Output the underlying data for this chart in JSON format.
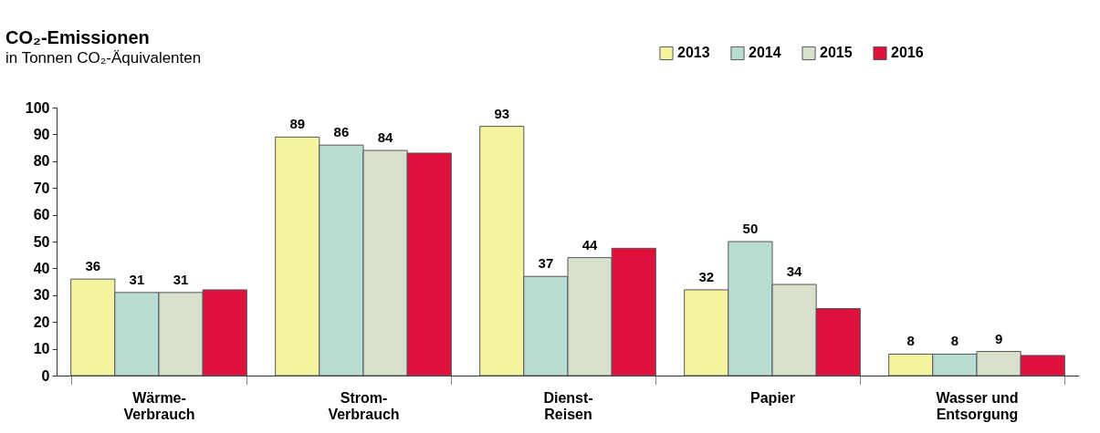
{
  "chart_data": {
    "type": "bar",
    "title": "CO₂-Emissionen",
    "subtitle": "in Tonnen CO₂-Äquivalenten",
    "categories": [
      "Wärme-Verbrauch",
      "Strom-Verbrauch",
      "Dienst-Reisen",
      "Papier",
      "Wasser und Entsorgung"
    ],
    "series": [
      {
        "name": "2013",
        "color": "#f5f3a0",
        "values": [
          36,
          89,
          93,
          32,
          8
        ],
        "value_labels": [
          "36",
          "89",
          "93",
          "32",
          "8"
        ]
      },
      {
        "name": "2014",
        "color": "#b9ddd3",
        "values": [
          31,
          86,
          37,
          50,
          8
        ],
        "value_labels": [
          "31",
          "86",
          "37",
          "50",
          "8"
        ]
      },
      {
        "name": "2015",
        "color": "#d6e0cb",
        "values": [
          31,
          84,
          44,
          34,
          9
        ],
        "value_labels": [
          "31",
          "84",
          "44",
          "34",
          "9"
        ]
      },
      {
        "name": "2016",
        "color": "#e0103c",
        "values": [
          32,
          83,
          47.5,
          25,
          7.5
        ],
        "value_labels": [
          null,
          null,
          null,
          null,
          null
        ]
      }
    ],
    "ylim": [
      0,
      100
    ],
    "yticks": [
      0,
      10,
      20,
      30,
      40,
      50,
      60,
      70,
      80,
      90,
      100
    ],
    "grid": false,
    "legend": "top right"
  }
}
